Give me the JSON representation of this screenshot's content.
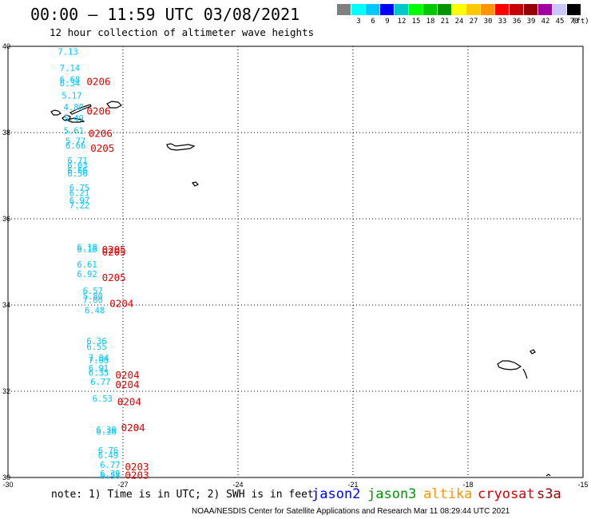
{
  "header": {
    "title": "00:00 – 11:59 UTC 03/08/2021",
    "subtitle": "12 hour collection of altimeter wave heights"
  },
  "legend": {
    "unit": "(ft)",
    "colors": [
      {
        "color": "#808080",
        "label": ""
      },
      {
        "color": "#00ffff",
        "label": "3"
      },
      {
        "color": "#00c8ff",
        "label": "6"
      },
      {
        "color": "#0000ff",
        "label": "9"
      },
      {
        "color": "#00c8c8",
        "label": "12"
      },
      {
        "color": "#00ff00",
        "label": "15"
      },
      {
        "color": "#00c800",
        "label": "18"
      },
      {
        "color": "#009600",
        "label": "21"
      },
      {
        "color": "#ffff00",
        "label": "24"
      },
      {
        "color": "#ffc800",
        "label": "27"
      },
      {
        "color": "#ff9600",
        "label": "30"
      },
      {
        "color": "#ff0000",
        "label": "33"
      },
      {
        "color": "#c80000",
        "label": "36"
      },
      {
        "color": "#960000",
        "label": "39"
      },
      {
        "color": "#a000a0",
        "label": "42"
      },
      {
        "color": "#c8c8ff",
        "label": "45"
      },
      {
        "color": "#000000",
        "label": "70"
      }
    ]
  },
  "axes": {
    "lat_ticks": [
      "40",
      "38",
      "36",
      "34",
      "32",
      "30"
    ],
    "lon_ticks": [
      "-30",
      "-27",
      "-24",
      "-21",
      "-18",
      "-15"
    ]
  },
  "wave_heights": [
    {
      "lat": 39.81,
      "lon": -28.7,
      "value": "7.13"
    },
    {
      "lat": 39.43,
      "lon": -28.65,
      "value": "7.14"
    },
    {
      "lat": 39.16,
      "lon": -28.65,
      "value": "6.68"
    },
    {
      "lat": 39.07,
      "lon": -28.65,
      "value": "6.34"
    },
    {
      "lat": 38.79,
      "lon": -28.6,
      "value": "5.17"
    },
    {
      "lat": 38.52,
      "lon": -28.55,
      "value": "4.80"
    },
    {
      "lat": 38.26,
      "lon": -28.55,
      "value": "5.49"
    },
    {
      "lat": 37.97,
      "lon": -28.55,
      "value": "5.61"
    },
    {
      "lat": 37.73,
      "lon": -28.5,
      "value": "5.77"
    },
    {
      "lat": 37.63,
      "lon": -28.5,
      "value": "6.66"
    },
    {
      "lat": 37.28,
      "lon": -28.45,
      "value": "6.71"
    },
    {
      "lat": 37.17,
      "lon": -28.45,
      "value": "6.03"
    },
    {
      "lat": 37.06,
      "lon": -28.45,
      "value": "6.66"
    },
    {
      "lat": 36.98,
      "lon": -28.45,
      "value": "6.56"
    },
    {
      "lat": 36.65,
      "lon": -28.4,
      "value": "6.75"
    },
    {
      "lat": 36.53,
      "lon": -28.4,
      "value": "6.21"
    },
    {
      "lat": 36.35,
      "lon": -28.4,
      "value": "6.97"
    },
    {
      "lat": 36.24,
      "lon": -28.4,
      "value": "7.22"
    },
    {
      "lat": 35.27,
      "lon": -28.2,
      "value": "6.18"
    },
    {
      "lat": 35.22,
      "lon": -28.2,
      "value": "6.18"
    },
    {
      "lat": 34.87,
      "lon": -28.2,
      "value": "6.61"
    },
    {
      "lat": 34.65,
      "lon": -28.2,
      "value": "6.92"
    },
    {
      "lat": 34.26,
      "lon": -28.05,
      "value": "6.57"
    },
    {
      "lat": 34.14,
      "lon": -28.05,
      "value": "5.80"
    },
    {
      "lat": 34.05,
      "lon": -28.05,
      "value": "7.00"
    },
    {
      "lat": 33.81,
      "lon": -28.0,
      "value": "6.48"
    },
    {
      "lat": 33.09,
      "lon": -27.95,
      "value": "6.36"
    },
    {
      "lat": 32.96,
      "lon": -27.95,
      "value": "6.55"
    },
    {
      "lat": 32.7,
      "lon": -27.9,
      "value": "7.04"
    },
    {
      "lat": 32.65,
      "lon": -27.9,
      "value": "7.00"
    },
    {
      "lat": 32.46,
      "lon": -27.9,
      "value": "6.91"
    },
    {
      "lat": 32.36,
      "lon": -27.9,
      "value": "6.35"
    },
    {
      "lat": 32.15,
      "lon": -27.85,
      "value": "6.77"
    },
    {
      "lat": 31.76,
      "lon": -27.8,
      "value": "6.53"
    },
    {
      "lat": 31.04,
      "lon": -27.7,
      "value": "6.39"
    },
    {
      "lat": 30.99,
      "lon": -27.7,
      "value": "6.36"
    },
    {
      "lat": 30.56,
      "lon": -27.65,
      "value": "6.76"
    },
    {
      "lat": 30.44,
      "lon": -27.65,
      "value": "6.49"
    },
    {
      "lat": 30.22,
      "lon": -27.6,
      "value": "6.77"
    },
    {
      "lat": 30.02,
      "lon": -27.6,
      "value": "6.39"
    },
    {
      "lat": 29.97,
      "lon": -27.6,
      "value": "6.58"
    }
  ],
  "pass_times": [
    {
      "lat": 39.1,
      "lon": -27.95,
      "value": "0206"
    },
    {
      "lat": 38.42,
      "lon": -27.95,
      "value": "0206"
    },
    {
      "lat": 37.9,
      "lon": -27.9,
      "value": "0206"
    },
    {
      "lat": 37.56,
      "lon": -27.85,
      "value": "0205"
    },
    {
      "lat": 35.2,
      "lon": -27.55,
      "value": "0205"
    },
    {
      "lat": 35.15,
      "lon": -27.55,
      "value": "0205"
    },
    {
      "lat": 34.56,
      "lon": -27.55,
      "value": "0205"
    },
    {
      "lat": 33.95,
      "lon": -27.35,
      "value": "0204"
    },
    {
      "lat": 32.3,
      "lon": -27.2,
      "value": "0204"
    },
    {
      "lat": 32.07,
      "lon": -27.2,
      "value": "0204"
    },
    {
      "lat": 31.68,
      "lon": -27.15,
      "value": "0204"
    },
    {
      "lat": 31.07,
      "lon": -27.05,
      "value": "0204"
    },
    {
      "lat": 30.17,
      "lon": -26.95,
      "value": "0203"
    },
    {
      "lat": 29.97,
      "lon": -26.95,
      "value": "0203"
    }
  ],
  "footer": {
    "note": "note: 1) Time is in UTC; 2) SWH is in feet",
    "satellites": [
      {
        "name": "jason2",
        "color": "#0000ff"
      },
      {
        "name": "jason3",
        "color": "#009600"
      },
      {
        "name": "altika",
        "color": "#ff9600"
      },
      {
        "name": "cryosat",
        "color": "#e00000"
      },
      {
        "name": "s3a",
        "color": "#960000"
      }
    ],
    "credit": "NOAA/NESDIS Center for Satellite Applications and Research    Mar 11 08:29:44 UTC 2021"
  }
}
